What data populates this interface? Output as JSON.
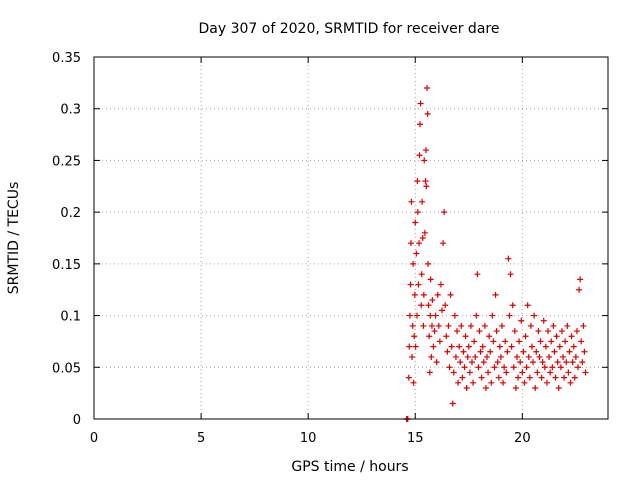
{
  "chart_data": {
    "type": "scatter",
    "title": "Day 307 of 2020, SRMTID for receiver dare",
    "xlabel": "GPS time / hours",
    "ylabel": "SRMTID / TECUs",
    "xlim": [
      0,
      24
    ],
    "ylim": [
      0,
      0.35
    ],
    "xticks": [
      0,
      5,
      10,
      15,
      20
    ],
    "xtick_labels": [
      "0",
      "5",
      "10",
      "15",
      "20"
    ],
    "yticks": [
      0,
      0.05,
      0.1,
      0.15,
      0.2,
      0.25,
      0.3,
      0.35
    ],
    "ytick_labels": [
      "0",
      "0.05",
      "0.1",
      "0.15",
      "0.2",
      "0.25",
      "0.3",
      "0.35"
    ],
    "grid": true,
    "marker": "+",
    "color": "#dd0000",
    "series": [
      {
        "name": "SRMTID",
        "points": [
          [
            14.6,
            0.0
          ],
          [
            14.62,
            0.0
          ],
          [
            14.65,
            0.0
          ],
          [
            14.7,
            0.04
          ],
          [
            14.72,
            0.07
          ],
          [
            14.75,
            0.1
          ],
          [
            14.78,
            0.13
          ],
          [
            14.8,
            0.17
          ],
          [
            14.82,
            0.21
          ],
          [
            14.85,
            0.06
          ],
          [
            14.88,
            0.09
          ],
          [
            14.9,
            0.15
          ],
          [
            14.92,
            0.035
          ],
          [
            14.95,
            0.08
          ],
          [
            14.98,
            0.12
          ],
          [
            15.0,
            0.19
          ],
          [
            15.02,
            0.07
          ],
          [
            15.05,
            0.16
          ],
          [
            15.08,
            0.1
          ],
          [
            15.1,
            0.23
          ],
          [
            15.12,
            0.2
          ],
          [
            15.15,
            0.13
          ],
          [
            15.18,
            0.17
          ],
          [
            15.2,
            0.255
          ],
          [
            15.22,
            0.285
          ],
          [
            15.25,
            0.305
          ],
          [
            15.28,
            0.11
          ],
          [
            15.3,
            0.14
          ],
          [
            15.32,
            0.21
          ],
          [
            15.35,
            0.175
          ],
          [
            15.38,
            0.09
          ],
          [
            15.4,
            0.12
          ],
          [
            15.42,
            0.25
          ],
          [
            15.45,
            0.18
          ],
          [
            15.48,
            0.23
          ],
          [
            15.5,
            0.26
          ],
          [
            15.52,
            0.225
          ],
          [
            15.55,
            0.32
          ],
          [
            15.58,
            0.295
          ],
          [
            15.6,
            0.15
          ],
          [
            15.62,
            0.11
          ],
          [
            15.65,
            0.08
          ],
          [
            15.68,
            0.045
          ],
          [
            15.7,
            0.1
          ],
          [
            15.72,
            0.135
          ],
          [
            15.75,
            0.06
          ],
          [
            15.78,
            0.09
          ],
          [
            15.8,
            0.115
          ],
          [
            15.85,
            0.07
          ],
          [
            15.9,
            0.085
          ],
          [
            15.95,
            0.1
          ],
          [
            16.0,
            0.055
          ],
          [
            16.05,
            0.12
          ],
          [
            16.1,
            0.09
          ],
          [
            16.15,
            0.075
          ],
          [
            16.2,
            0.13
          ],
          [
            16.25,
            0.105
          ],
          [
            16.3,
            0.17
          ],
          [
            16.35,
            0.2
          ],
          [
            16.4,
            0.11
          ],
          [
            16.45,
            0.08
          ],
          [
            16.5,
            0.065
          ],
          [
            16.55,
            0.09
          ],
          [
            16.6,
            0.05
          ],
          [
            16.65,
            0.12
          ],
          [
            16.7,
            0.07
          ],
          [
            16.75,
            0.015
          ],
          [
            16.8,
            0.045
          ],
          [
            16.85,
            0.1
          ],
          [
            16.9,
            0.06
          ],
          [
            16.95,
            0.085
          ],
          [
            17.0,
            0.035
          ],
          [
            17.05,
            0.07
          ],
          [
            17.1,
            0.055
          ],
          [
            17.15,
            0.09
          ],
          [
            17.2,
            0.04
          ],
          [
            17.25,
            0.065
          ],
          [
            17.3,
            0.05
          ],
          [
            17.35,
            0.08
          ],
          [
            17.4,
            0.03
          ],
          [
            17.45,
            0.06
          ],
          [
            17.5,
            0.07
          ],
          [
            17.55,
            0.045
          ],
          [
            17.6,
            0.09
          ],
          [
            17.65,
            0.055
          ],
          [
            17.7,
            0.035
          ],
          [
            17.75,
            0.075
          ],
          [
            17.8,
            0.06
          ],
          [
            17.85,
            0.1
          ],
          [
            17.9,
            0.14
          ],
          [
            17.95,
            0.05
          ],
          [
            18.0,
            0.085
          ],
          [
            18.05,
            0.065
          ],
          [
            18.1,
            0.04
          ],
          [
            18.15,
            0.07
          ],
          [
            18.2,
            0.055
          ],
          [
            18.25,
            0.09
          ],
          [
            18.3,
            0.03
          ],
          [
            18.35,
            0.06
          ],
          [
            18.4,
            0.045
          ],
          [
            18.45,
            0.08
          ],
          [
            18.5,
            0.065
          ],
          [
            18.55,
            0.035
          ],
          [
            18.6,
            0.1
          ],
          [
            18.65,
            0.075
          ],
          [
            18.7,
            0.05
          ],
          [
            18.75,
            0.12
          ],
          [
            18.8,
            0.085
          ],
          [
            18.85,
            0.055
          ],
          [
            18.9,
            0.04
          ],
          [
            18.95,
            0.07
          ],
          [
            19.0,
            0.06
          ],
          [
            19.05,
            0.09
          ],
          [
            19.1,
            0.035
          ],
          [
            19.15,
            0.05
          ],
          [
            19.2,
            0.075
          ],
          [
            19.25,
            0.045
          ],
          [
            19.3,
            0.065
          ],
          [
            19.35,
            0.155
          ],
          [
            19.4,
            0.1
          ],
          [
            19.45,
            0.14
          ],
          [
            19.5,
            0.07
          ],
          [
            19.55,
            0.11
          ],
          [
            19.6,
            0.05
          ],
          [
            19.65,
            0.085
          ],
          [
            19.7,
            0.03
          ],
          [
            19.75,
            0.06
          ],
          [
            19.8,
            0.04
          ],
          [
            19.85,
            0.075
          ],
          [
            19.9,
            0.055
          ],
          [
            19.95,
            0.095
          ],
          [
            20.0,
            0.045
          ],
          [
            20.05,
            0.065
          ],
          [
            20.1,
            0.035
          ],
          [
            20.15,
            0.08
          ],
          [
            20.2,
            0.05
          ],
          [
            20.25,
            0.11
          ],
          [
            20.3,
            0.06
          ],
          [
            20.35,
            0.04
          ],
          [
            20.4,
            0.09
          ],
          [
            20.45,
            0.07
          ],
          [
            20.5,
            0.055
          ],
          [
            20.55,
            0.1
          ],
          [
            20.6,
            0.03
          ],
          [
            20.65,
            0.065
          ],
          [
            20.7,
            0.045
          ],
          [
            20.75,
            0.085
          ],
          [
            20.8,
            0.06
          ],
          [
            20.85,
            0.075
          ],
          [
            20.9,
            0.04
          ],
          [
            20.95,
            0.055
          ],
          [
            21.0,
            0.095
          ],
          [
            21.05,
            0.05
          ],
          [
            21.1,
            0.07
          ],
          [
            21.15,
            0.035
          ],
          [
            21.2,
            0.085
          ],
          [
            21.25,
            0.06
          ],
          [
            21.3,
            0.045
          ],
          [
            21.35,
            0.075
          ],
          [
            21.4,
            0.05
          ],
          [
            21.45,
            0.09
          ],
          [
            21.5,
            0.065
          ],
          [
            21.55,
            0.04
          ],
          [
            21.6,
            0.08
          ],
          [
            21.65,
            0.055
          ],
          [
            21.7,
            0.03
          ],
          [
            21.75,
            0.07
          ],
          [
            21.8,
            0.05
          ],
          [
            21.85,
            0.085
          ],
          [
            21.9,
            0.06
          ],
          [
            21.95,
            0.04
          ],
          [
            22.0,
            0.075
          ],
          [
            22.05,
            0.055
          ],
          [
            22.1,
            0.09
          ],
          [
            22.15,
            0.045
          ],
          [
            22.2,
            0.065
          ],
          [
            22.25,
            0.035
          ],
          [
            22.3,
            0.08
          ],
          [
            22.35,
            0.055
          ],
          [
            22.4,
            0.07
          ],
          [
            22.45,
            0.04
          ],
          [
            22.5,
            0.06
          ],
          [
            22.55,
            0.085
          ],
          [
            22.6,
            0.05
          ],
          [
            22.65,
            0.125
          ],
          [
            22.7,
            0.135
          ],
          [
            22.75,
            0.075
          ],
          [
            22.8,
            0.055
          ],
          [
            22.85,
            0.09
          ],
          [
            22.9,
            0.065
          ],
          [
            22.95,
            0.045
          ]
        ]
      }
    ]
  }
}
